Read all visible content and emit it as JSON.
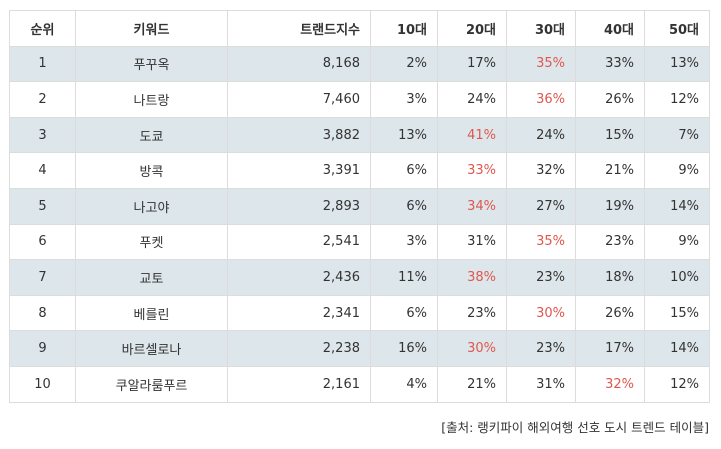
{
  "table": {
    "headers": [
      "순위",
      "키워드",
      "트랜드지수",
      "10대",
      "20대",
      "30대",
      "40대",
      "50대"
    ],
    "rows": [
      {
        "rank": "1",
        "keyword": "푸꾸옥",
        "index": "8,168",
        "a10": "2%",
        "a20": "17%",
        "a30": "35%",
        "a40": "33%",
        "a50": "13%",
        "highlight": "a30"
      },
      {
        "rank": "2",
        "keyword": "나트랑",
        "index": "7,460",
        "a10": "3%",
        "a20": "24%",
        "a30": "36%",
        "a40": "26%",
        "a50": "12%",
        "highlight": "a30"
      },
      {
        "rank": "3",
        "keyword": "도쿄",
        "index": "3,882",
        "a10": "13%",
        "a20": "41%",
        "a30": "24%",
        "a40": "15%",
        "a50": "7%",
        "highlight": "a20"
      },
      {
        "rank": "4",
        "keyword": "방콕",
        "index": "3,391",
        "a10": "6%",
        "a20": "33%",
        "a30": "32%",
        "a40": "21%",
        "a50": "9%",
        "highlight": "a20"
      },
      {
        "rank": "5",
        "keyword": "나고야",
        "index": "2,893",
        "a10": "6%",
        "a20": "34%",
        "a30": "27%",
        "a40": "19%",
        "a50": "14%",
        "highlight": "a20"
      },
      {
        "rank": "6",
        "keyword": "푸켓",
        "index": "2,541",
        "a10": "3%",
        "a20": "31%",
        "a30": "35%",
        "a40": "23%",
        "a50": "9%",
        "highlight": "a30"
      },
      {
        "rank": "7",
        "keyword": "교토",
        "index": "2,436",
        "a10": "11%",
        "a20": "38%",
        "a30": "23%",
        "a40": "18%",
        "a50": "10%",
        "highlight": "a20"
      },
      {
        "rank": "8",
        "keyword": "베를린",
        "index": "2,341",
        "a10": "6%",
        "a20": "23%",
        "a30": "30%",
        "a40": "26%",
        "a50": "15%",
        "highlight": "a30"
      },
      {
        "rank": "9",
        "keyword": "바르셀로나",
        "index": "2,238",
        "a10": "16%",
        "a20": "30%",
        "a30": "23%",
        "a40": "17%",
        "a50": "14%",
        "highlight": "a20"
      },
      {
        "rank": "10",
        "keyword": "쿠알라룸푸르",
        "index": "2,161",
        "a10": "4%",
        "a20": "21%",
        "a30": "31%",
        "a40": "32%",
        "a50": "12%",
        "highlight": "a40"
      }
    ]
  },
  "source_note": "[출처: 랭키파이 해외여행 선호 도시 트렌드 테이블]",
  "colors": {
    "highlight": "#e0574f",
    "shaded_row": "#dde6ea",
    "border": "#dcdcdc",
    "text": "#333333"
  }
}
